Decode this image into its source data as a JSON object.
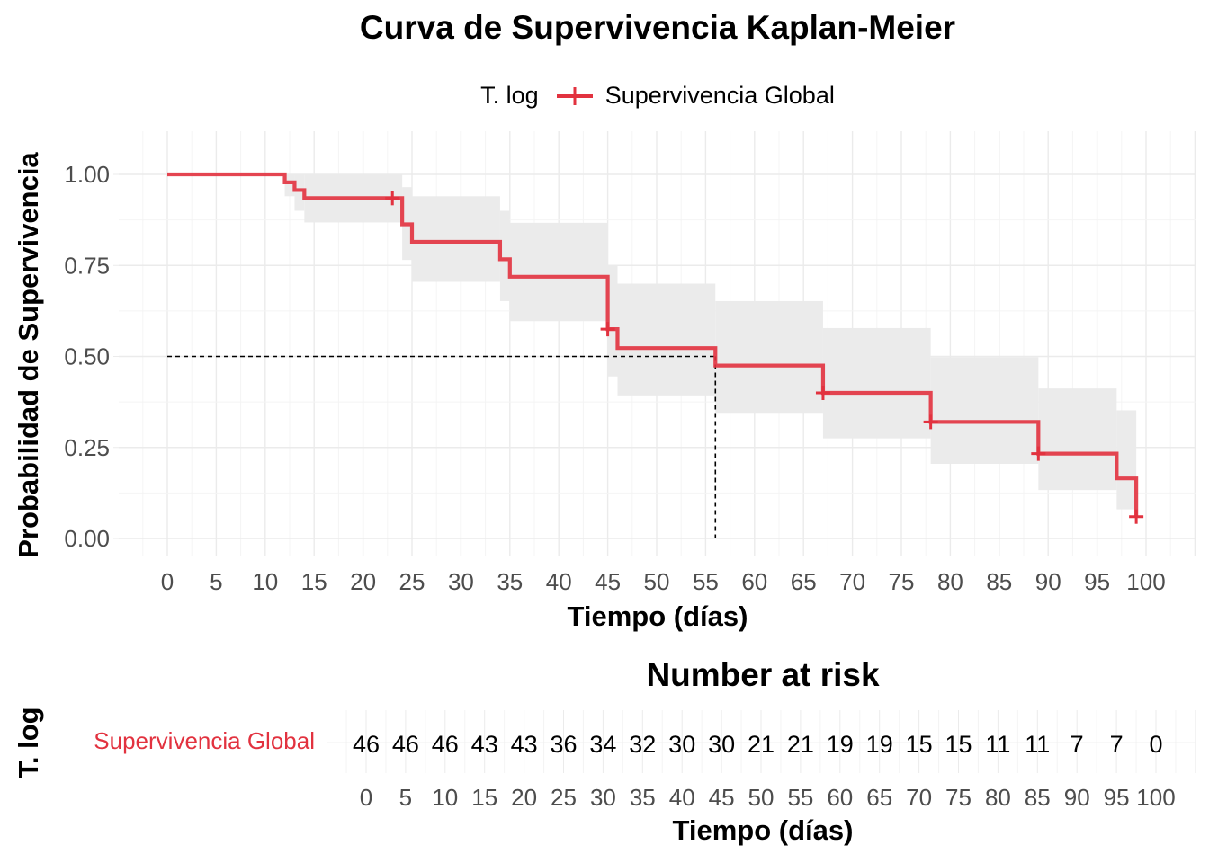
{
  "chart_data": [
    {
      "type": "line",
      "subtype": "kaplan-meier-step",
      "title": "Curva de Supervivencia Kaplan-Meier",
      "xlabel": "Tiempo (días)",
      "ylabel": "Probabilidad de Supervivencia",
      "legend": {
        "title": "T. log",
        "position": "top",
        "entries": [
          "Supervivencia Global"
        ]
      },
      "xlim": [
        0,
        100
      ],
      "ylim": [
        0,
        1
      ],
      "x_ticks": [
        0,
        5,
        10,
        15,
        20,
        25,
        30,
        35,
        40,
        45,
        50,
        55,
        60,
        65,
        70,
        75,
        80,
        85,
        90,
        95,
        100
      ],
      "y_ticks": [
        0.0,
        0.25,
        0.5,
        0.75,
        1.0
      ],
      "y_tick_labels": [
        "0.00",
        "0.25",
        "0.50",
        "0.75",
        "1.00"
      ],
      "grid": true,
      "series": [
        {
          "name": "Supervivencia Global",
          "color": "#E2323F",
          "steps": [
            {
              "x": 0,
              "y": 1.0
            },
            {
              "x": 12,
              "y": 0.978
            },
            {
              "x": 13,
              "y": 0.957
            },
            {
              "x": 14,
              "y": 0.935
            },
            {
              "x": 24,
              "y": 0.863
            },
            {
              "x": 25,
              "y": 0.815
            },
            {
              "x": 34,
              "y": 0.767
            },
            {
              "x": 35,
              "y": 0.719
            },
            {
              "x": 45,
              "y": 0.575
            },
            {
              "x": 46,
              "y": 0.523
            },
            {
              "x": 56,
              "y": 0.475
            },
            {
              "x": 67,
              "y": 0.4
            },
            {
              "x": 78,
              "y": 0.32
            },
            {
              "x": 89,
              "y": 0.233
            },
            {
              "x": 97,
              "y": 0.165
            },
            {
              "x": 99,
              "y": 0.06
            }
          ],
          "end_x": 99,
          "censored": [
            {
              "x": 23,
              "y": 0.935
            },
            {
              "x": 45,
              "y": 0.575
            },
            {
              "x": 67,
              "y": 0.4
            },
            {
              "x": 78,
              "y": 0.32
            },
            {
              "x": 89,
              "y": 0.233
            },
            {
              "x": 99,
              "y": 0.06
            }
          ],
          "confidence_band": [
            {
              "x": 12,
              "lower": 0.94,
              "upper": 1.0
            },
            {
              "x": 13,
              "lower": 0.9,
              "upper": 1.0
            },
            {
              "x": 14,
              "lower": 0.868,
              "upper": 1.0
            },
            {
              "x": 24,
              "lower": 0.765,
              "upper": 0.965
            },
            {
              "x": 25,
              "lower": 0.705,
              "upper": 0.94
            },
            {
              "x": 34,
              "lower": 0.652,
              "upper": 0.9
            },
            {
              "x": 35,
              "lower": 0.597,
              "upper": 0.867
            },
            {
              "x": 45,
              "lower": 0.445,
              "upper": 0.75
            },
            {
              "x": 46,
              "lower": 0.393,
              "upper": 0.7
            },
            {
              "x": 56,
              "lower": 0.345,
              "upper": 0.652
            },
            {
              "x": 67,
              "lower": 0.275,
              "upper": 0.578
            },
            {
              "x": 78,
              "lower": 0.205,
              "upper": 0.498
            },
            {
              "x": 89,
              "lower": 0.133,
              "upper": 0.412
            },
            {
              "x": 97,
              "lower": 0.08,
              "upper": 0.352
            },
            {
              "x": 99,
              "lower": 0.08,
              "upper": 0.352
            }
          ]
        }
      ],
      "median": {
        "x": 56,
        "y": 0.5
      }
    },
    {
      "type": "table",
      "title": "Number at risk",
      "xlabel": "Tiempo (días)",
      "ylabel": "T. log",
      "row_label": "Supervivencia Global",
      "row_color": "#E2323F",
      "x": [
        0,
        5,
        10,
        15,
        20,
        25,
        30,
        35,
        40,
        45,
        50,
        55,
        60,
        65,
        70,
        75,
        80,
        85,
        90,
        95,
        100
      ],
      "values": [
        46,
        46,
        46,
        43,
        43,
        36,
        34,
        32,
        30,
        30,
        21,
        21,
        19,
        19,
        15,
        15,
        11,
        11,
        7,
        7,
        0
      ],
      "x_tick_labels": [
        "0",
        "5",
        "10",
        "15",
        "20",
        "25",
        "30",
        "35",
        "40",
        "45",
        "50",
        "55",
        "60",
        "65",
        "70",
        "75",
        "80",
        "85",
        "90",
        "95",
        "100"
      ]
    }
  ]
}
